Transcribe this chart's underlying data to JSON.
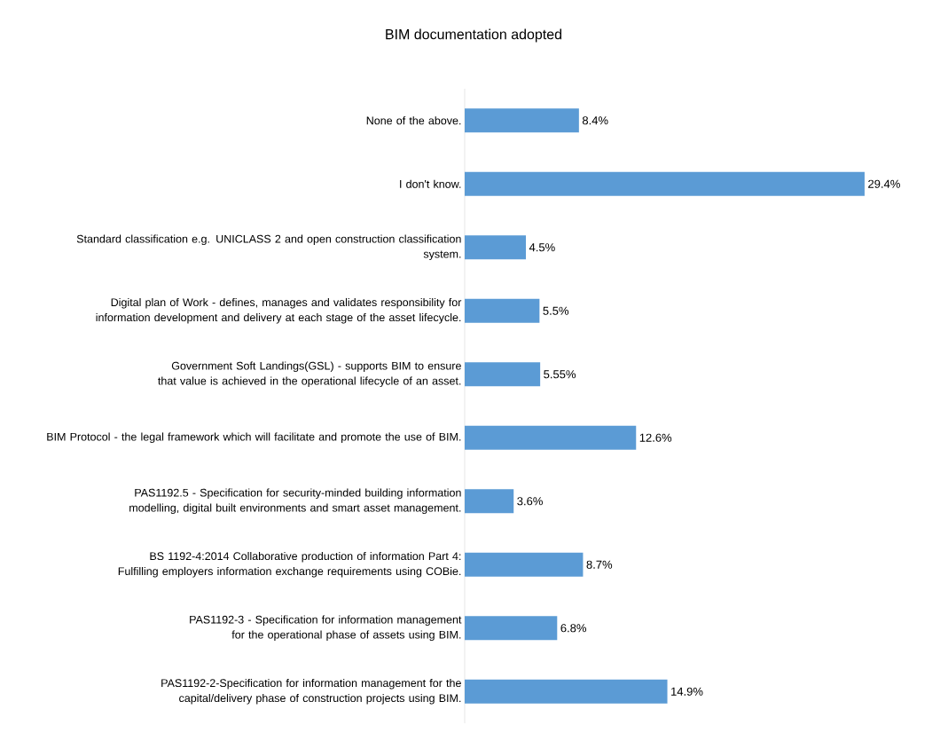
{
  "chart_data": {
    "type": "bar",
    "orientation": "horizontal",
    "title": "BIM documentation adopted",
    "categories": [
      "None of the above.",
      "I don't know.",
      "Standard classification e.g. UNICLASS 2 and open construction classification system.",
      "Digital plan of Work - defines, manages and validates responsibility for information development and delivery at each stage of the asset lifecycle.",
      "Government Soft Landings(GSL) - supports BIM to ensure that value is achieved in the operational lifecycle of an asset.",
      "BIM Protocol - the legal framework which will facilitate and promote the use of BIM.",
      "PAS1192.5 - Specification for security-minded building information modelling, digital built environments and smart asset management.",
      "BS 1192-4:2014 Collaborative production of information Part 4: Fulfilling employers information exchange requirements using COBie.",
      "PAS1192-3 - Specification for information management for the operational phase of assets using BIM.",
      "PAS1192-2-Specification for information management for the capital/delivery phase of construction projects using BIM."
    ],
    "values": [
      8.4,
      29.4,
      4.5,
      5.5,
      5.55,
      12.6,
      3.6,
      8.7,
      6.8,
      14.9
    ],
    "value_labels": [
      "8.4%",
      "29.4%",
      "4.5%",
      "5.5%",
      "5.55%",
      "12.6%",
      "3.6%",
      "8.7%",
      "6.8%",
      "14.9%"
    ],
    "color": "#5b9bd5"
  }
}
